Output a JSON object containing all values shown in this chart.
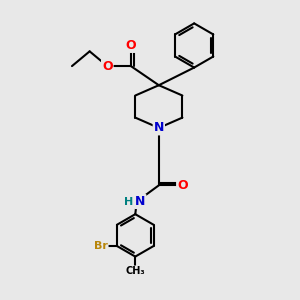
{
  "background_color": "#e8e8e8",
  "figure_size": [
    3.0,
    3.0
  ],
  "dpi": 100,
  "bond_color": "#000000",
  "bond_width": 1.5,
  "atom_colors": {
    "O": "#ff0000",
    "N": "#0000cd",
    "Br": "#b8860b",
    "H": "#008080",
    "C": "#000000"
  },
  "font_size": 9
}
